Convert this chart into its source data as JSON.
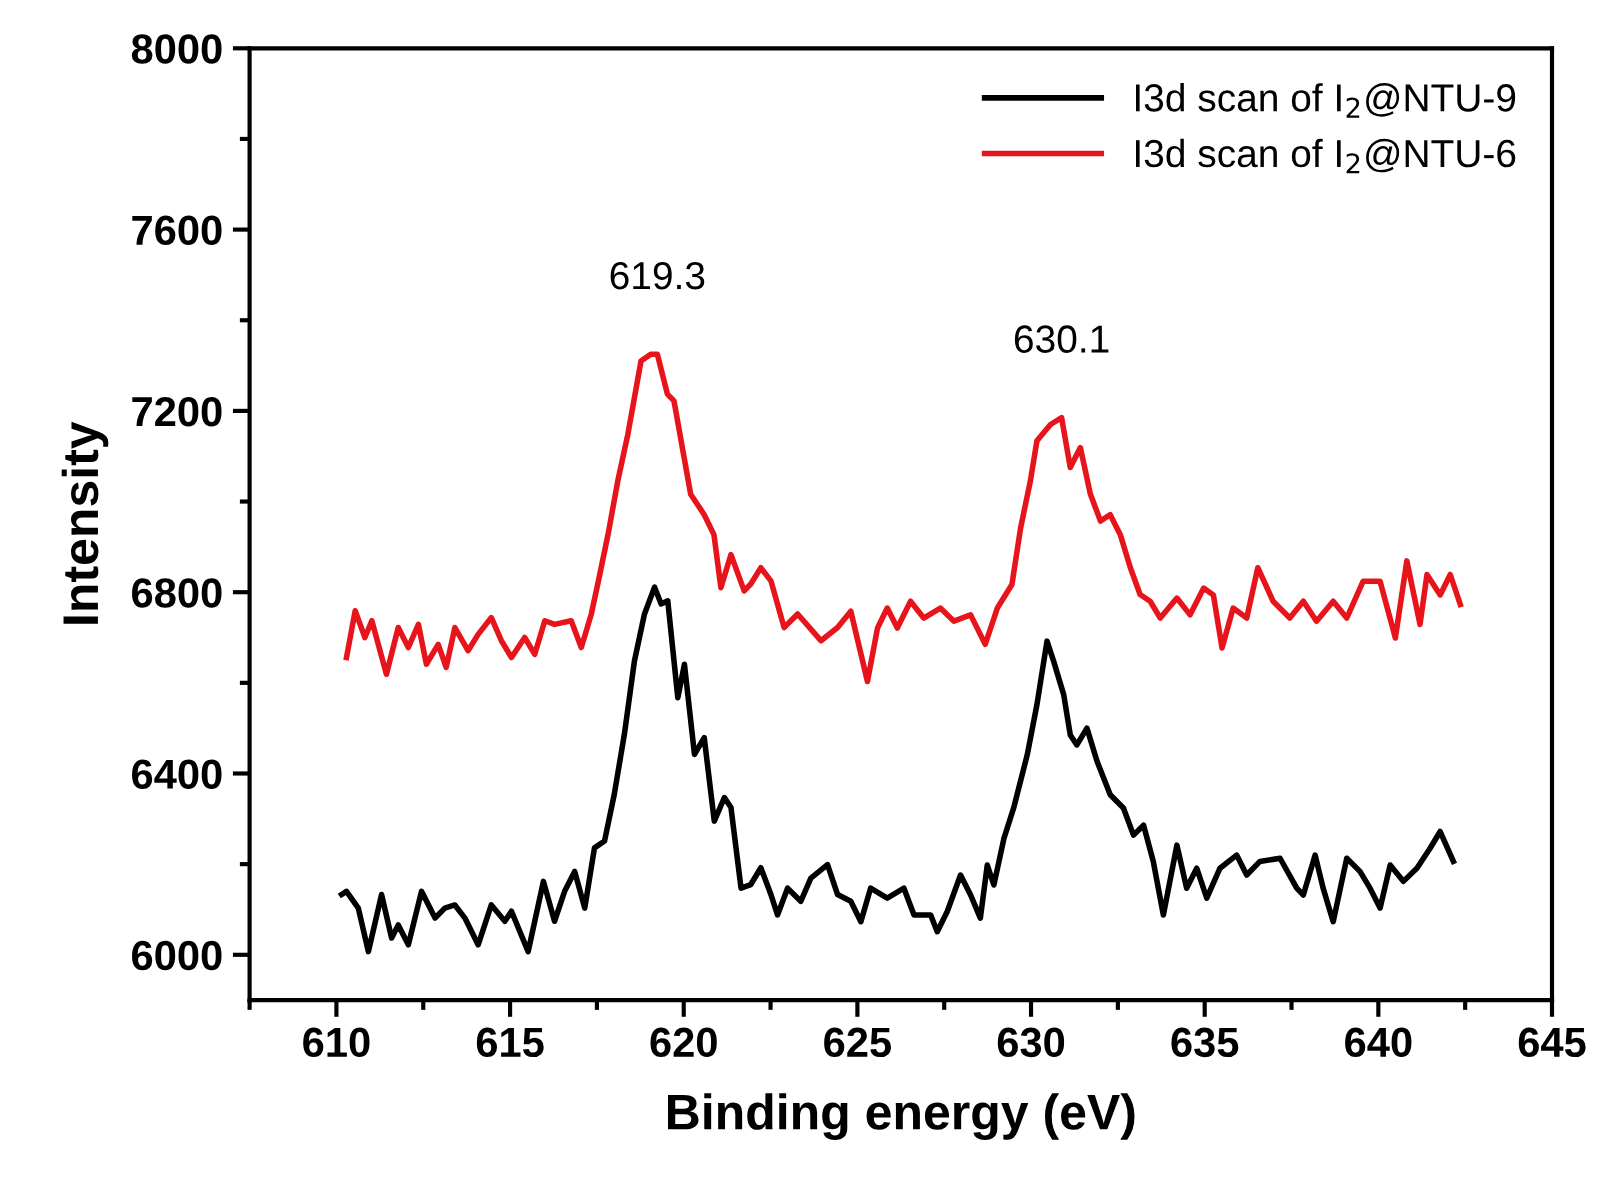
{
  "chart_data": {
    "type": "line",
    "xlabel": "Binding energy (eV)",
    "ylabel": "Intensity",
    "xlim": [
      607.5,
      645
    ],
    "xticks": [
      610,
      615,
      620,
      625,
      630,
      635,
      640,
      645
    ],
    "ylim": [
      5900,
      8000
    ],
    "yticks": [
      6000,
      6400,
      6800,
      7200,
      7600,
      8000
    ],
    "legend": "top right",
    "grid": false,
    "marker": "none",
    "line_style": "solid",
    "annotations": [
      "619.3",
      "630.1"
    ],
    "series": [
      {
        "name": "I3d scan of I$_{2}$@NTU-9",
        "color": "#000000",
        "x": [
          610.15,
          610.29,
          610.63,
          610.92,
          611.3,
          611.59,
          611.78,
          612.07,
          612.45,
          612.84,
          613.12,
          613.41,
          613.7,
          614.08,
          614.46,
          614.85,
          615.04,
          615.52,
          615.96,
          616.28,
          616.57,
          616.86,
          617.15,
          617.43,
          617.72,
          618.0,
          618.29,
          618.58,
          618.87,
          619.16,
          619.35,
          619.54,
          619.83,
          620.02,
          620.31,
          620.59,
          620.88,
          621.17,
          621.36,
          621.65,
          621.93,
          622.22,
          622.51,
          622.7,
          622.99,
          623.37,
          623.66,
          624.14,
          624.43,
          624.81,
          625.1,
          625.38,
          625.86,
          626.34,
          626.63,
          627.11,
          627.3,
          627.59,
          627.97,
          628.26,
          628.54,
          628.74,
          628.93,
          629.22,
          629.5,
          629.89,
          630.17,
          630.46,
          630.65,
          630.94,
          631.13,
          631.32,
          631.61,
          631.9,
          632.28,
          632.66,
          632.95,
          633.24,
          633.52,
          633.81,
          634.2,
          634.48,
          634.77,
          635.06,
          635.44,
          635.92,
          636.21,
          636.59,
          637.17,
          637.65,
          637.84,
          638.18,
          638.41,
          638.7,
          639.09,
          639.47,
          639.76,
          640.05,
          640.34,
          640.72,
          641.11,
          641.49,
          641.78,
          642.16
        ],
        "values": [
          6133,
          6140,
          6103,
          6007,
          6133,
          6037,
          6066,
          6022,
          6140,
          6081,
          6103,
          6110,
          6081,
          6022,
          6110,
          6074,
          6096,
          6007,
          6162,
          6074,
          6140,
          6184,
          6103,
          6236,
          6251,
          6354,
          6486,
          6648,
          6752,
          6811,
          6774,
          6781,
          6567,
          6641,
          6442,
          6479,
          6295,
          6347,
          6325,
          6147,
          6155,
          6192,
          6133,
          6088,
          6147,
          6118,
          6169,
          6199,
          6133,
          6118,
          6073,
          6147,
          6125,
          6147,
          6088,
          6088,
          6051,
          6096,
          6176,
          6132,
          6081,
          6198,
          6154,
          6257,
          6324,
          6441,
          6552,
          6692,
          6648,
          6574,
          6485,
          6463,
          6500,
          6427,
          6353,
          6324,
          6264,
          6286,
          6206,
          6088,
          6242,
          6147,
          6191,
          6125,
          6191,
          6220,
          6176,
          6206,
          6213,
          6147,
          6132,
          6220,
          6147,
          6073,
          6213,
          6184,
          6147,
          6103,
          6198,
          6162,
          6191,
          6235,
          6272,
          6206
        ]
      },
      {
        "name": "I3d scan of I$_{2}$@NTU-6",
        "color": "#e8141b",
        "x": [
          610.29,
          610.54,
          610.82,
          611.02,
          611.44,
          611.78,
          612.07,
          612.36,
          612.59,
          612.93,
          613.16,
          613.41,
          613.79,
          614.08,
          614.46,
          614.75,
          615.04,
          615.42,
          615.71,
          616.0,
          616.28,
          616.76,
          617.05,
          617.34,
          617.53,
          617.82,
          618.1,
          618.39,
          618.77,
          619.05,
          619.24,
          619.53,
          619.72,
          620.2,
          620.59,
          620.87,
          621.07,
          621.36,
          621.74,
          621.93,
          622.22,
          622.51,
          622.89,
          623.28,
          623.95,
          624.43,
          624.81,
          625.29,
          625.58,
          625.86,
          626.15,
          626.53,
          626.91,
          627.39,
          627.78,
          628.26,
          628.68,
          629.03,
          629.45,
          629.7,
          629.98,
          630.17,
          630.56,
          630.88,
          631.13,
          631.42,
          631.71,
          632.0,
          632.28,
          632.57,
          632.86,
          633.14,
          633.43,
          633.72,
          634.2,
          634.58,
          634.97,
          635.25,
          635.5,
          635.82,
          636.21,
          636.53,
          636.97,
          637.45,
          637.84,
          638.22,
          638.7,
          639.09,
          639.56,
          640.05,
          640.49,
          640.82,
          641.2,
          641.4,
          641.78,
          642.07,
          642.36
        ],
        "values": [
          6656,
          6759,
          6700,
          6737,
          6619,
          6722,
          6678,
          6729,
          6641,
          6685,
          6634,
          6722,
          6671,
          6707,
          6744,
          6693,
          6656,
          6700,
          6663,
          6737,
          6729,
          6737,
          6678,
          6752,
          6820,
          6927,
          7045,
          7148,
          7310,
          7325,
          7325,
          7237,
          7222,
          7016,
          6971,
          6927,
          6810,
          6883,
          6803,
          6818,
          6854,
          6825,
          6722,
          6752,
          6693,
          6722,
          6758,
          6603,
          6721,
          6765,
          6721,
          6780,
          6743,
          6765,
          6736,
          6750,
          6685,
          6765,
          6817,
          6942,
          7045,
          7134,
          7170,
          7185,
          7075,
          7119,
          7016,
          6957,
          6971,
          6927,
          6854,
          6795,
          6780,
          6743,
          6787,
          6750,
          6809,
          6794,
          6677,
          6765,
          6743,
          6854,
          6780,
          6743,
          6780,
          6736,
          6780,
          6743,
          6824,
          6824,
          6699,
          6869,
          6729,
          6839,
          6794,
          6839,
          6773
        ]
      }
    ]
  }
}
